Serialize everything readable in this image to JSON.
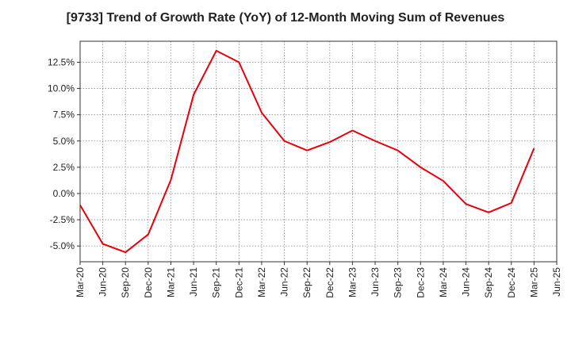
{
  "chart_data": {
    "type": "line",
    "title": "[9733]  Trend of Growth Rate (YoY) of 12-Month Moving Sum of Revenues",
    "xlabel": "",
    "ylabel": "",
    "x_ticks": [
      "Mar-20",
      "Jun-20",
      "Sep-20",
      "Dec-20",
      "Mar-21",
      "Jun-21",
      "Sep-21",
      "Dec-21",
      "Mar-22",
      "Jun-22",
      "Sep-22",
      "Dec-22",
      "Mar-23",
      "Jun-23",
      "Sep-23",
      "Dec-23",
      "Mar-24",
      "Jun-24",
      "Sep-24",
      "Dec-24",
      "Mar-25",
      "Jun-25"
    ],
    "y_ticks": [
      "12.5%",
      "10.0%",
      "7.5%",
      "5.0%",
      "2.5%",
      "0.0%",
      "-2.5%",
      "-5.0%"
    ],
    "y_tick_values": [
      12.5,
      10.0,
      7.5,
      5.0,
      2.5,
      0.0,
      -2.5,
      -5.0
    ],
    "ylim": [
      -6.5,
      14.5
    ],
    "grid": true,
    "line_color": "#e8000b",
    "series": [
      {
        "x": [
          "Mar-20",
          "Jun-20",
          "Sep-20",
          "Dec-20",
          "Mar-21",
          "Jun-21",
          "Sep-21",
          "Dec-21",
          "Mar-22",
          "Jun-22",
          "Sep-22",
          "Dec-22",
          "Mar-23",
          "Jun-23",
          "Sep-23",
          "Dec-23",
          "Mar-24",
          "Jun-24",
          "Sep-24",
          "Dec-24",
          "Mar-25"
        ],
        "values": [
          -1.1,
          -4.8,
          -5.6,
          -3.9,
          1.3,
          9.4,
          13.6,
          12.5,
          7.7,
          5.0,
          4.1,
          4.9,
          6.0,
          5.0,
          4.1,
          2.5,
          1.2,
          -1.0,
          -1.8,
          -0.9,
          4.3
        ]
      }
    ]
  }
}
